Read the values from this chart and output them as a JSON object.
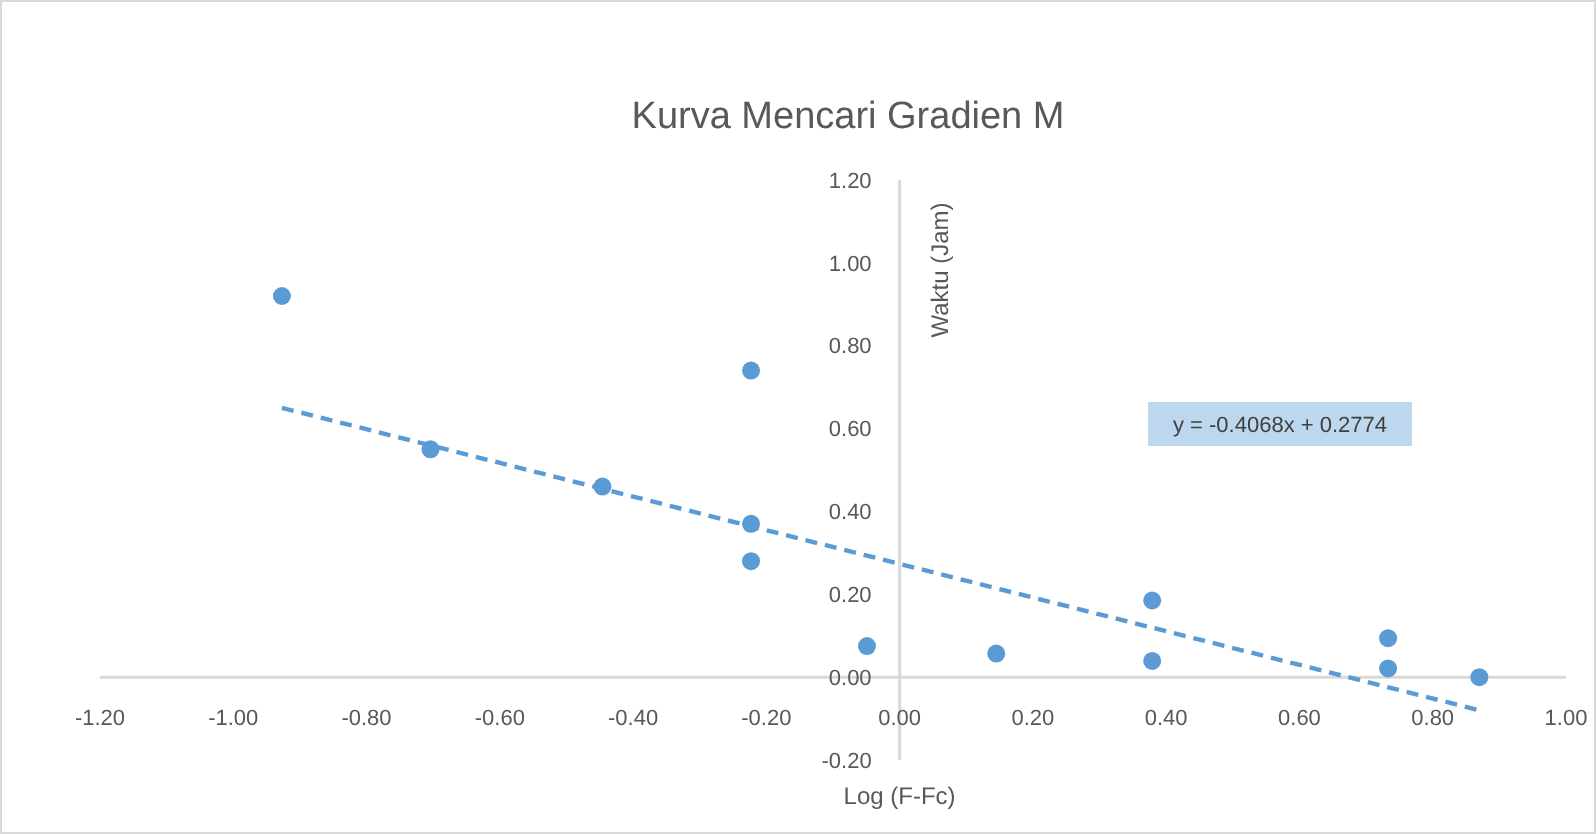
{
  "chart_data": {
    "type": "scatter",
    "title": "Kurva Mencari Gradien M",
    "xlabel": "Log (F-Fc)",
    "ylabel": "Waktu (Jam)",
    "series": [
      {
        "color": "#5b9bd5",
        "x": [
          -0.927,
          -0.704,
          -0.446,
          -0.223,
          -0.223,
          -0.223,
          -0.049,
          0.145,
          0.379,
          0.379,
          0.733,
          0.733,
          0.87
        ],
        "values": [
          0.92,
          0.55,
          0.46,
          0.74,
          0.37,
          0.28,
          0.075,
          0.057,
          0.185,
          0.039,
          0.094,
          0.021,
          0.0
        ]
      },
      {
        "type": "line",
        "color": "#5b9bd5",
        "line_style": "dashed",
        "marker": "none",
        "x": [
          -0.927,
          0.87
        ],
        "values": [
          0.65,
          -0.08
        ]
      }
    ],
    "annotations": [
      "y = -0.4068x + 0.2774"
    ],
    "xlim": [
      -1.2,
      1.0
    ],
    "xticks": [
      {
        "value": -1.2,
        "label": "-1.20"
      },
      {
        "value": -1.0,
        "label": "-1.00"
      },
      {
        "value": -0.8,
        "label": "-0.80"
      },
      {
        "value": -0.6,
        "label": "-0.60"
      },
      {
        "value": -0.4,
        "label": "-0.40"
      },
      {
        "value": -0.2,
        "label": "-0.20"
      },
      {
        "value": 0,
        "label": "0.00"
      },
      {
        "value": 0.2,
        "label": "0.20"
      },
      {
        "value": 0.4,
        "label": "0.40"
      },
      {
        "value": 0.6,
        "label": "0.60"
      },
      {
        "value": 0.8,
        "label": "0.80"
      },
      {
        "value": 1.0,
        "label": "1.00"
      }
    ],
    "ylim": [
      -0.2,
      1.2
    ],
    "yticks": [
      {
        "value": -0.2,
        "label": "-0.20"
      },
      {
        "value": 0,
        "label": "0.00"
      },
      {
        "value": 0.2,
        "label": "0.20"
      },
      {
        "value": 0.4,
        "label": "0.40"
      },
      {
        "value": 0.6,
        "label": "0.60"
      },
      {
        "value": 0.8,
        "label": "0.80"
      },
      {
        "value": 1.0,
        "label": "1.00"
      },
      {
        "value": 1.2,
        "label": "1.20"
      }
    ],
    "grid": false
  }
}
